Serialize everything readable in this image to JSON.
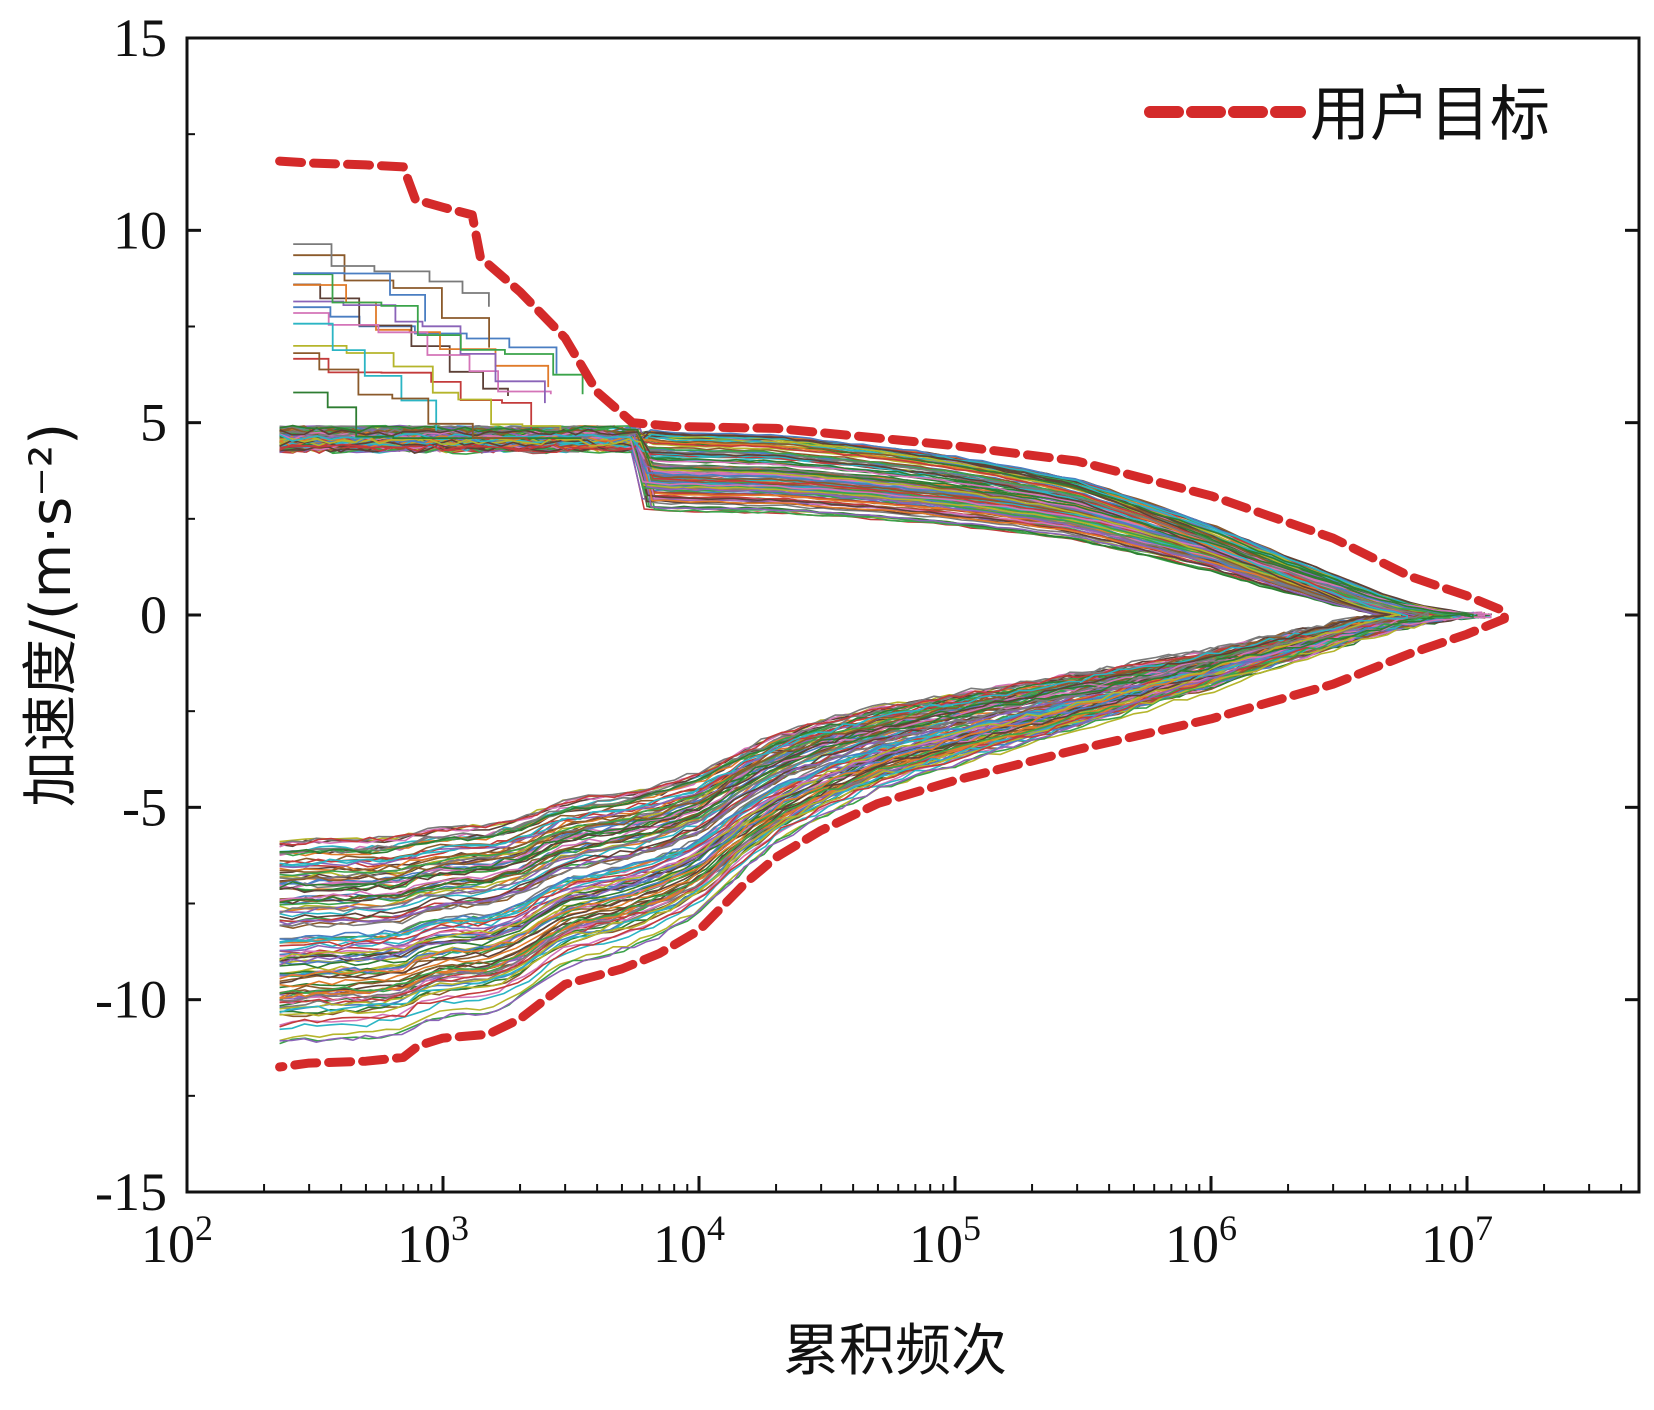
{
  "chart_data": {
    "type": "line",
    "title": "",
    "xlabel": "累积频次",
    "ylabel": "加速度/(m·s⁻²)",
    "xscale": "log",
    "xlim": [
      100,
      50000000
    ],
    "ylim": [
      -15,
      15
    ],
    "x_ticks": [
      {
        "value": 100,
        "base": "10",
        "exp": "2"
      },
      {
        "value": 1000,
        "base": "10",
        "exp": "3"
      },
      {
        "value": 10000,
        "base": "10",
        "exp": "4"
      },
      {
        "value": 100000,
        "base": "10",
        "exp": "5"
      },
      {
        "value": 1000000,
        "base": "10",
        "exp": "6"
      },
      {
        "value": 10000000,
        "base": "10",
        "exp": "7"
      }
    ],
    "y_ticks": [
      "-15",
      "-10",
      "-5",
      "0",
      "5",
      "10",
      "15"
    ],
    "legend": {
      "position": "top-right",
      "entries": [
        {
          "name": "用户目标",
          "color": "#d42a2a",
          "style": "dashed"
        }
      ]
    },
    "target_series": {
      "name": "用户目标",
      "color": "#d42a2a",
      "upper": [
        [
          230,
          11.8
        ],
        [
          300,
          11.75
        ],
        [
          500,
          11.7
        ],
        [
          700,
          11.65
        ],
        [
          780,
          10.8
        ],
        [
          1000,
          10.6
        ],
        [
          1300,
          10.4
        ],
        [
          1400,
          9.3
        ],
        [
          2000,
          8.4
        ],
        [
          3000,
          7.2
        ],
        [
          4000,
          5.8
        ],
        [
          5500,
          5.0
        ],
        [
          8000,
          4.9
        ],
        [
          20000,
          4.85
        ],
        [
          60000,
          4.55
        ],
        [
          100000,
          4.4
        ],
        [
          300000,
          4.0
        ],
        [
          1000000,
          3.1
        ],
        [
          3000000,
          2.0
        ],
        [
          6000000,
          1.0
        ],
        [
          10000000,
          0.5
        ],
        [
          14000000,
          0.1
        ]
      ],
      "lower": [
        [
          14000000,
          -0.1
        ],
        [
          10000000,
          -0.5
        ],
        [
          6000000,
          -1.0
        ],
        [
          3000000,
          -1.8
        ],
        [
          1000000,
          -2.7
        ],
        [
          300000,
          -3.5
        ],
        [
          100000,
          -4.3
        ],
        [
          50000,
          -4.9
        ],
        [
          30000,
          -5.6
        ],
        [
          20000,
          -6.3
        ],
        [
          15000,
          -7.0
        ],
        [
          10000,
          -8.2
        ],
        [
          7000,
          -8.8
        ],
        [
          5000,
          -9.2
        ],
        [
          3000,
          -9.6
        ],
        [
          2500,
          -10.0
        ],
        [
          2000,
          -10.5
        ],
        [
          1500,
          -10.9
        ],
        [
          1000,
          -11.0
        ],
        [
          800,
          -11.2
        ],
        [
          700,
          -11.5
        ],
        [
          500,
          -11.6
        ],
        [
          300,
          -11.65
        ],
        [
          230,
          -11.75
        ]
      ]
    },
    "envelope": {
      "description_values": "sample curves (simulated) lie inside target envelope",
      "count": 120,
      "colors": [
        "#4a7ec2",
        "#e07b2a",
        "#3aa34a",
        "#c33b3b",
        "#8a63b8",
        "#8b5a2b",
        "#d474b8",
        "#7a7a7a",
        "#b5b52b",
        "#2bb5c4",
        "#5d4037",
        "#2e7d32"
      ]
    }
  }
}
